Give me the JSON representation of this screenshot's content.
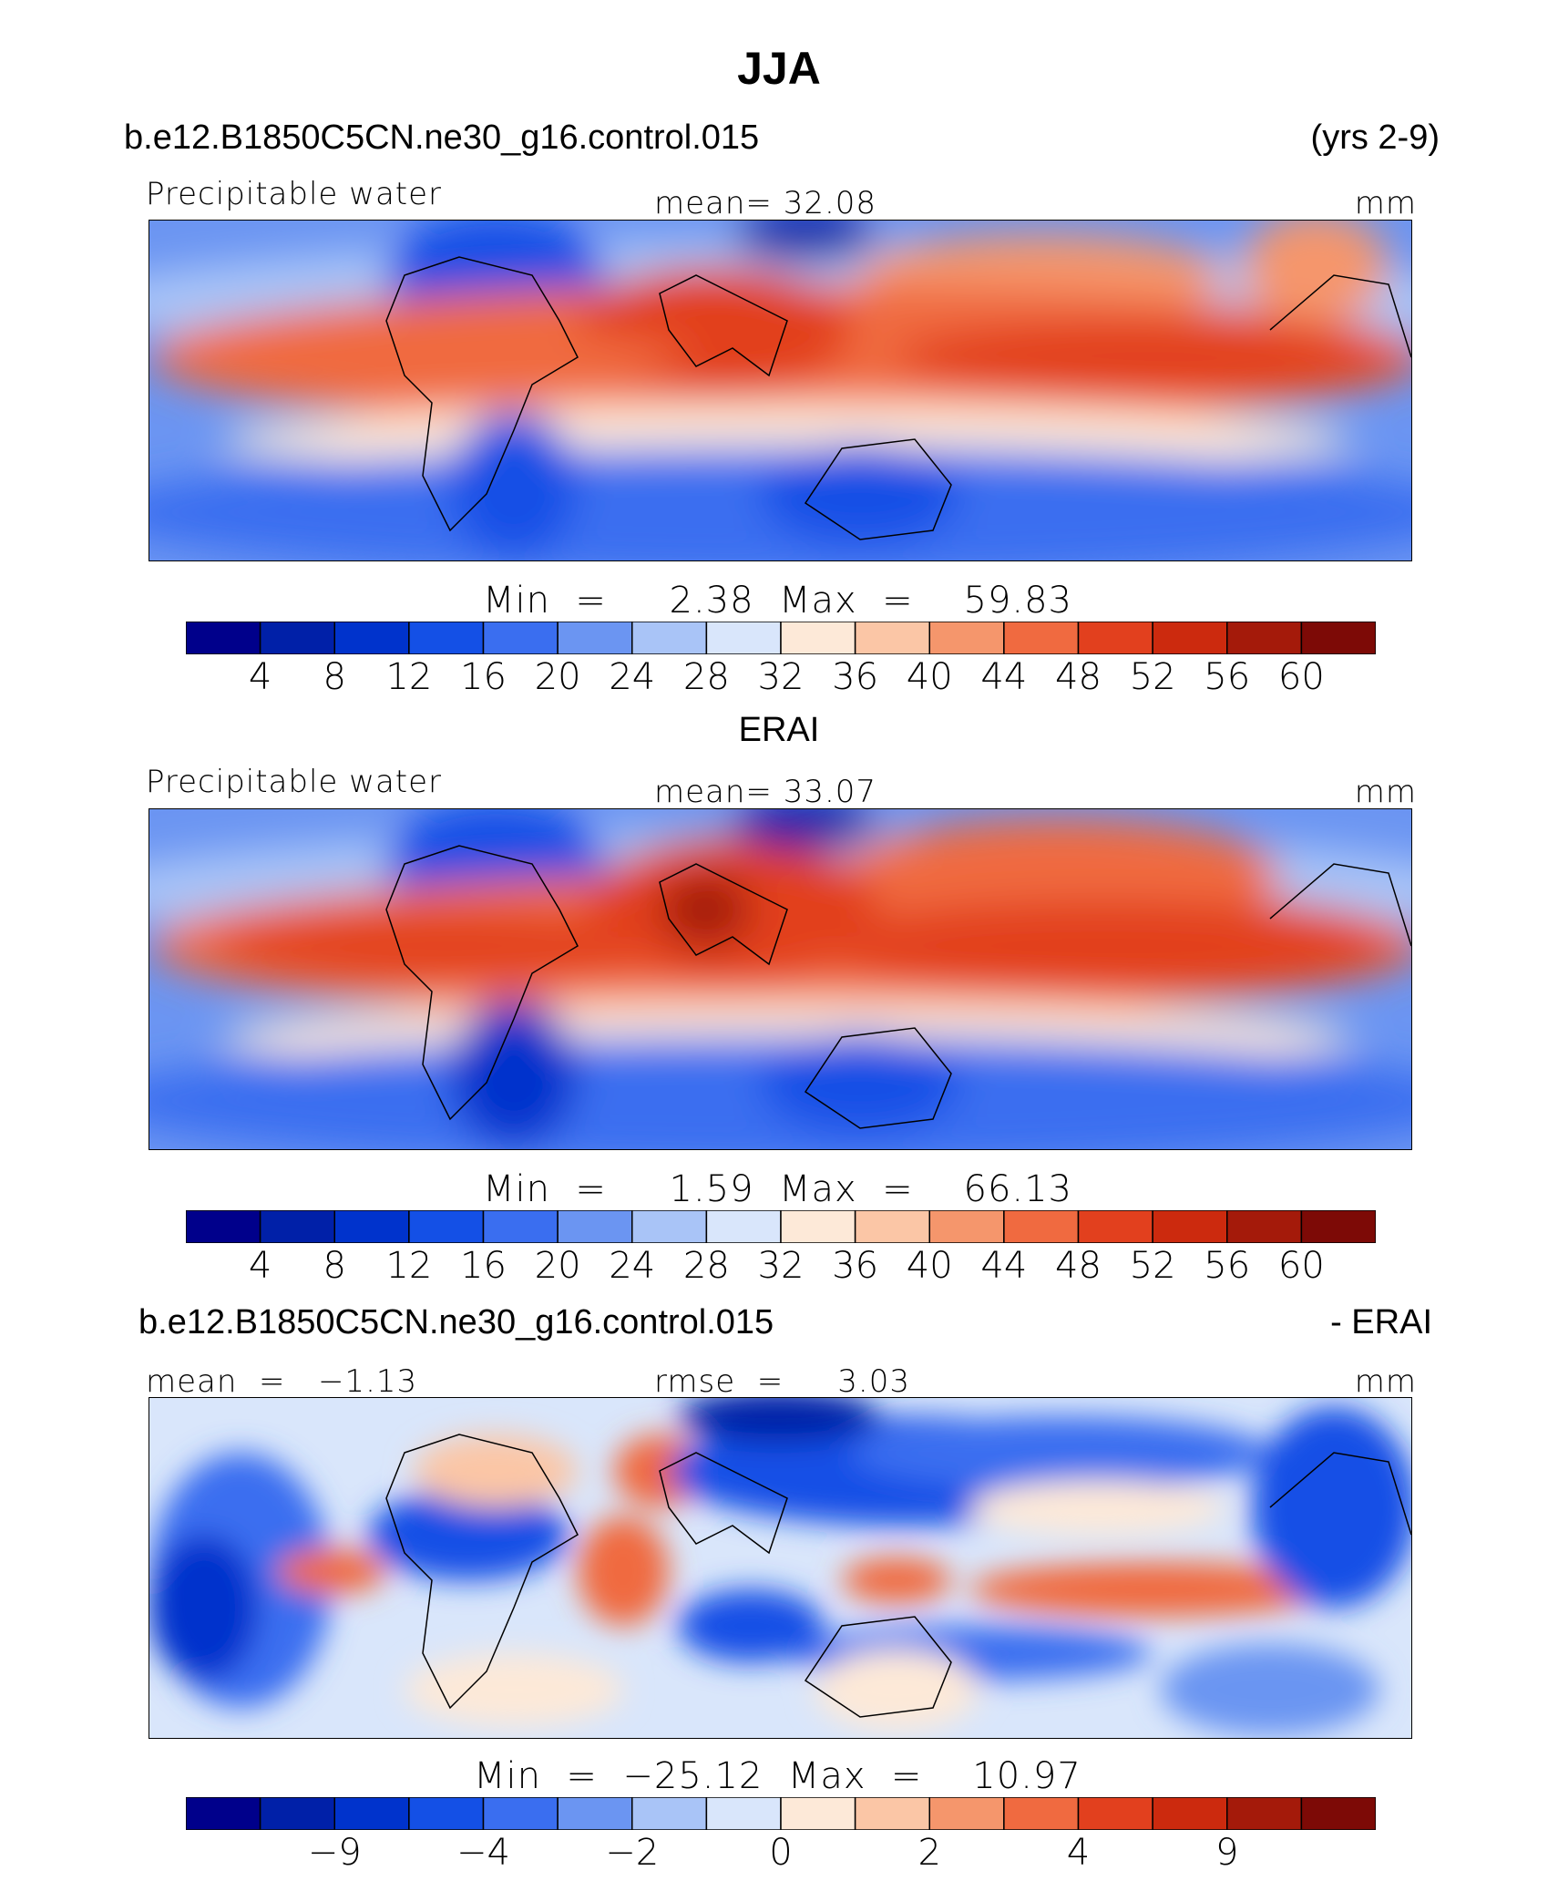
{
  "figure_title": "JJA",
  "panels": [
    {
      "case": "b.e12.B1850C5CN.ne30_g16.control.015",
      "years": "(yrs 2-9)",
      "variable": "Precipitable water",
      "mean_text": "mean=   32.08",
      "units": "mm",
      "minmax_text": "Min  =     2.38  Max  =    59.83"
    },
    {
      "case": "ERAI",
      "variable": "Precipitable water",
      "mean_text": "mean=   33.07",
      "units": "mm",
      "minmax_text": "Min  =     1.59  Max  =    66.13"
    },
    {
      "case": "b.e12.B1850C5CN.ne30_g16.control.015",
      "suffix": "- ERAI",
      "mean_text": "mean  =   −1.13",
      "rmse_text": "rmse  =     3.03",
      "units": "mm",
      "minmax_text": "Min  =  −25.12  Max  =    10.97"
    }
  ],
  "colorbar_colors": [
    "#00008b",
    "#0020a8",
    "#0033cc",
    "#1450e6",
    "#3a6ef0",
    "#6b95f2",
    "#a9c4f7",
    "#d9e6fb",
    "#fde9d8",
    "#fbc6a6",
    "#f5966c",
    "#f06a40",
    "#e2401e",
    "#cc2a0e",
    "#a41a0a",
    "#7d0a06"
  ],
  "colorbar_labels_abs": [
    "4",
    "8",
    "12",
    "16",
    "20",
    "24",
    "28",
    "32",
    "36",
    "40",
    "44",
    "48",
    "52",
    "56",
    "60"
  ],
  "colorbar_labels_diff": [
    "−9",
    "−4",
    "−2",
    "0",
    "2",
    "4",
    "9"
  ],
  "chart_data": [
    {
      "type": "heatmap",
      "title": "Precipitable water (b.e12.B1850C5CN.ne30_g16.control.015, JJA)",
      "units": "mm",
      "mean": 32.08,
      "min": 2.38,
      "max": 59.83,
      "levels": [
        4,
        8,
        12,
        16,
        20,
        24,
        28,
        32,
        36,
        40,
        44,
        48,
        52,
        56,
        60
      ]
    },
    {
      "type": "heatmap",
      "title": "Precipitable water (ERAI, JJA)",
      "units": "mm",
      "mean": 33.07,
      "min": 1.59,
      "max": 66.13,
      "levels": [
        4,
        8,
        12,
        16,
        20,
        24,
        28,
        32,
        36,
        40,
        44,
        48,
        52,
        56,
        60
      ]
    },
    {
      "type": "heatmap",
      "title": "Difference: b.e12.B1850C5CN.ne30_g16.control.015 - ERAI",
      "units": "mm",
      "mean": -1.13,
      "rmse": 3.03,
      "min": -25.12,
      "max": 10.97,
      "levels": [
        -9,
        -4,
        -2,
        0,
        2,
        4,
        9
      ]
    }
  ]
}
